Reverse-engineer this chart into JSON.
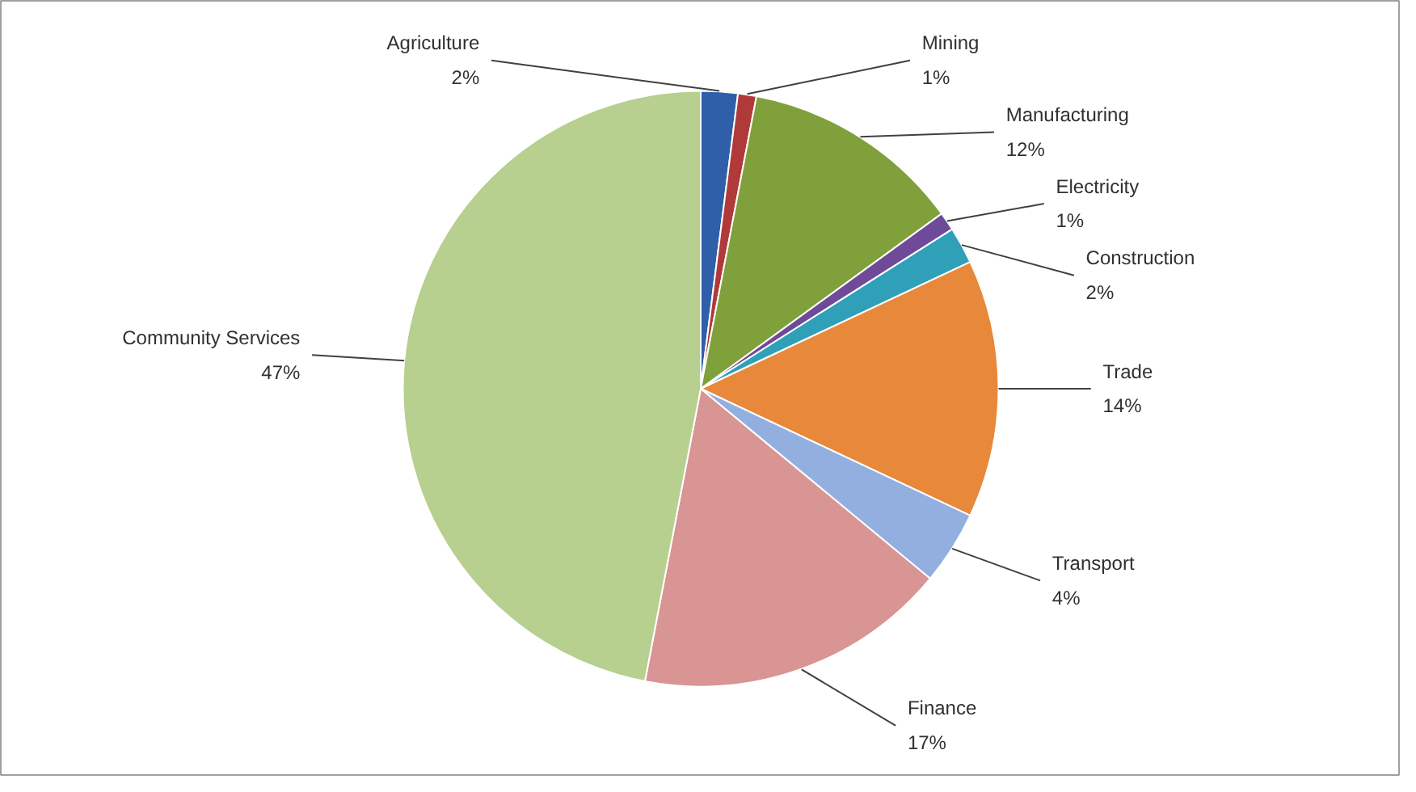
{
  "chart_data": {
    "type": "pie",
    "categories": [
      "Agriculture",
      "Mining",
      "Manufacturing",
      "Electricity",
      "Construction",
      "Trade",
      "Transport",
      "Finance",
      "Community Services"
    ],
    "values": [
      2,
      1,
      12,
      1,
      2,
      14,
      4,
      17,
      47
    ],
    "value_labels": [
      "2%",
      "1%",
      "12%",
      "1%",
      "2%",
      "14%",
      "4%",
      "17%",
      "47%"
    ],
    "colors": [
      "#2e5fa8",
      "#b03a3a",
      "#7fa03a",
      "#6e4a98",
      "#2fa0b8",
      "#e8883a",
      "#93afe0",
      "#d99494",
      "#b7cf8f"
    ]
  }
}
